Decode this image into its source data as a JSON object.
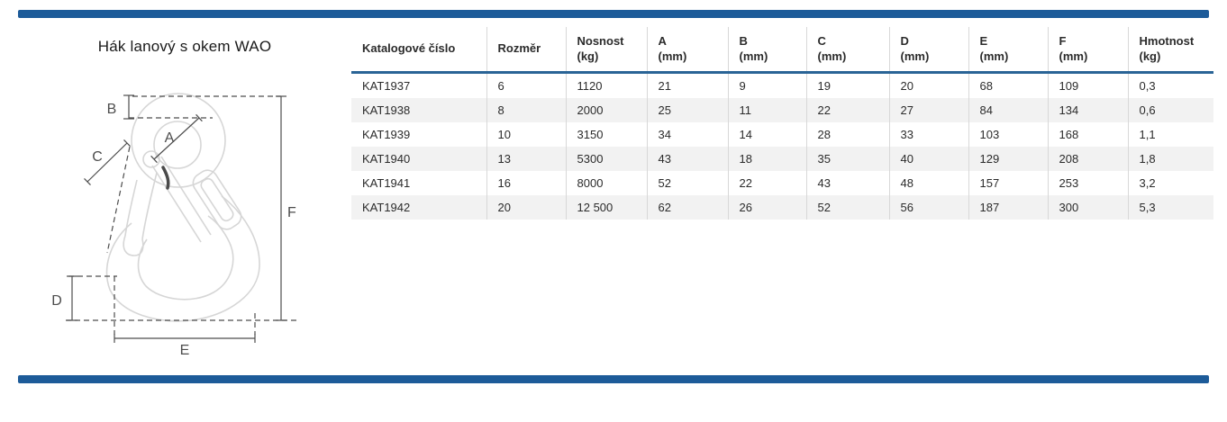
{
  "title": "Hák lanový s okem WAO",
  "colors": {
    "bar_blue": "#1d5b99",
    "underline_blue": "#2a6496",
    "row_alt": "#f2f2f2",
    "grid_line": "#d8d8d8",
    "text_dark": "#2b2b2b",
    "drawing_gray": "#d6d6d6",
    "dim_gray": "#4d4d4d"
  },
  "diagram": {
    "labels": {
      "A": "A",
      "B": "B",
      "C": "C",
      "D": "D",
      "E": "E",
      "F": "F"
    }
  },
  "table": {
    "columns": [
      {
        "label": "Katalogové číslo"
      },
      {
        "label": "Rozměr"
      },
      {
        "label": "Nosnost\n(kg)"
      },
      {
        "label": "A\n(mm)"
      },
      {
        "label": "B\n(mm)"
      },
      {
        "label": "C\n(mm)"
      },
      {
        "label": "D\n(mm)"
      },
      {
        "label": "E\n(mm)"
      },
      {
        "label": "F\n(mm)"
      },
      {
        "label": "Hmotnost\n(kg)"
      }
    ],
    "rows": [
      [
        "KAT1937",
        "6",
        "1120",
        "21",
        "9",
        "19",
        "20",
        "68",
        "109",
        "0,3"
      ],
      [
        "KAT1938",
        "8",
        "2000",
        "25",
        "11",
        "22",
        "27",
        "84",
        "134",
        "0,6"
      ],
      [
        "KAT1939",
        "10",
        "3150",
        "34",
        "14",
        "28",
        "33",
        "103",
        "168",
        "1,1"
      ],
      [
        "KAT1940",
        "13",
        "5300",
        "43",
        "18",
        "35",
        "40",
        "129",
        "208",
        "1,8"
      ],
      [
        "KAT1941",
        "16",
        "8000",
        "52",
        "22",
        "43",
        "48",
        "157",
        "253",
        "3,2"
      ],
      [
        "KAT1942",
        "20",
        "12 500",
        "62",
        "26",
        "52",
        "56",
        "187",
        "300",
        "5,3"
      ]
    ]
  }
}
